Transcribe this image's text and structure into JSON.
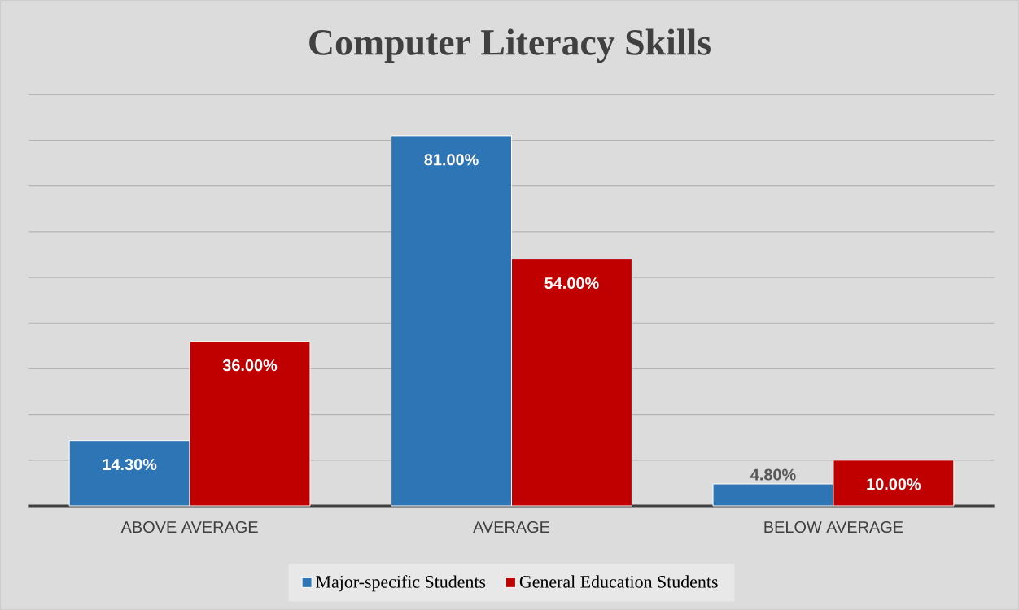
{
  "chart_data": {
    "type": "bar",
    "title": "Computer Literacy Skills",
    "categories": [
      "ABOVE AVERAGE",
      "AVERAGE",
      "BELOW AVERAGE"
    ],
    "series": [
      {
        "name": "Major-specific Students",
        "color": "#2e75b6",
        "values": [
          14.3,
          81,
          4.8
        ],
        "value_labels": [
          "14.30%",
          "81.00%",
          "4.80%"
        ]
      },
      {
        "name": "General Education Students",
        "color": "#c00000",
        "values": [
          36,
          54,
          10
        ],
        "value_labels": [
          "36.00%",
          "54.00%",
          "10.00%"
        ]
      }
    ],
    "ylim": [
      0,
      90
    ],
    "yticks": [
      {
        "value": 0,
        "label": null
      },
      {
        "value": 10,
        "label": null
      },
      {
        "value": 20,
        "label": null
      },
      {
        "value": 30,
        "label": null
      },
      {
        "value": 40,
        "label": null
      },
      {
        "value": 50,
        "label": null
      },
      {
        "value": 60,
        "label": null
      },
      {
        "value": 70,
        "label": null
      },
      {
        "value": 80,
        "label": null
      },
      {
        "value": 90,
        "label": null
      }
    ],
    "grid": "y",
    "tick_labels": "x",
    "legend": "bottom"
  }
}
